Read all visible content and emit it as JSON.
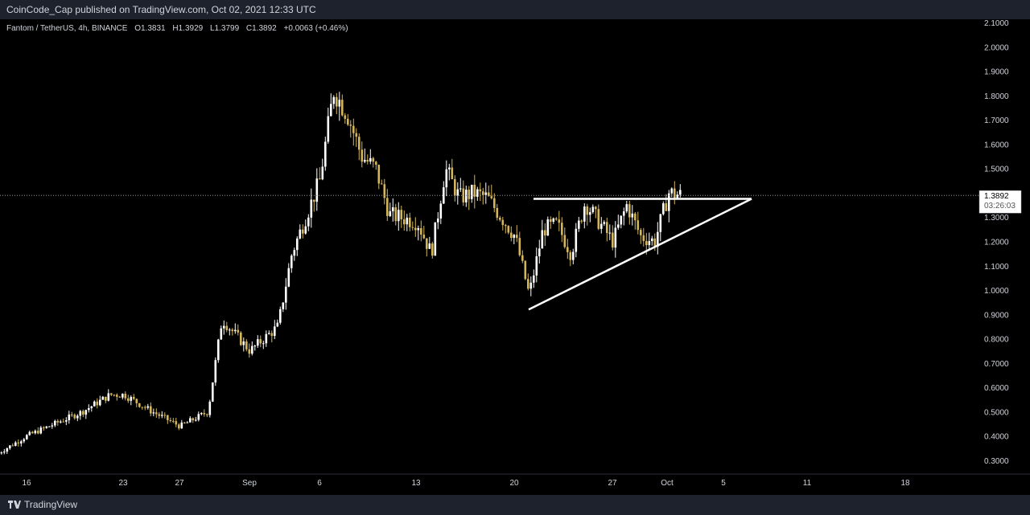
{
  "header": {
    "publish_line": "CoinCode_Cap published on TradingView.com, Oct 02, 2021 12:33 UTC"
  },
  "legend": {
    "symbol": "Fantom / TetherUS, 4h, BINANCE",
    "o_label": "O",
    "o": "1.3831",
    "h_label": "H",
    "h": "1.3929",
    "l_label": "L",
    "l": "1.3799",
    "c_label": "C",
    "c": "1.3892",
    "change": "+0.0063 (+0.46%)"
  },
  "price_badge": {
    "price": "1.3892",
    "countdown": "03:26:03"
  },
  "footer": {
    "brand": "TradingView"
  },
  "colors": {
    "background": "#000000",
    "panel": "#131722",
    "up": "#ffffff",
    "down": "#d4b65a",
    "drawing": "#ffffff",
    "text": "#d1d4dc"
  },
  "chart_data": {
    "type": "candlestick",
    "x_ticks": [
      "16",
      "23",
      "27",
      "Sep",
      "6",
      "13",
      "20",
      "27",
      "Oct",
      "5",
      "11",
      "18"
    ],
    "y_ticks": [
      "0.3000",
      "0.4000",
      "0.5000",
      "0.6000",
      "0.7000",
      "0.8000",
      "0.9000",
      "1.0000",
      "1.1000",
      "1.2000",
      "1.3000",
      "1.4000",
      "1.5000",
      "1.6000",
      "1.7000",
      "1.8000",
      "1.9000",
      "2.0000",
      "2.1000"
    ],
    "ylim": [
      0.25,
      2.1
    ],
    "last_price": 1.3892,
    "series": {
      "dates": [
        "Aug 14",
        "Aug 16",
        "Aug 18",
        "Aug 20",
        "Aug 22",
        "Aug 23",
        "Aug 25",
        "Aug 27",
        "Aug 29",
        "Aug 30",
        "Sep 1",
        "Sep 3",
        "Sep 4",
        "Sep 6",
        "Sep 7",
        "Sep 8",
        "Sep 9",
        "Sep 10",
        "Sep 11",
        "Sep 13",
        "Sep 14",
        "Sep 15",
        "Sep 16",
        "Sep 17",
        "Sep 18",
        "Sep 20",
        "Sep 21",
        "Sep 22",
        "Sep 23",
        "Sep 24",
        "Sep 25",
        "Sep 27",
        "Sep 28",
        "Sep 29",
        "Sep 30",
        "Oct 1",
        "Oct 2"
      ],
      "close": [
        0.33,
        0.4,
        0.45,
        0.5,
        0.57,
        0.57,
        0.5,
        0.44,
        0.5,
        0.88,
        0.75,
        0.85,
        1.15,
        1.45,
        1.82,
        1.72,
        1.55,
        1.5,
        1.31,
        1.28,
        1.15,
        1.5,
        1.38,
        1.4,
        1.38,
        1.22,
        0.98,
        1.25,
        1.27,
        1.15,
        1.36,
        1.2,
        1.35,
        1.22,
        1.2,
        1.4,
        1.389
      ]
    },
    "drawings": {
      "resistance": {
        "from": [
          "Sep 20",
          1.375
        ],
        "to": [
          "Oct 5",
          1.375
        ]
      },
      "support": {
        "from": [
          "Sep 20",
          0.92
        ],
        "to": [
          "Oct 5",
          1.375
        ]
      }
    }
  }
}
